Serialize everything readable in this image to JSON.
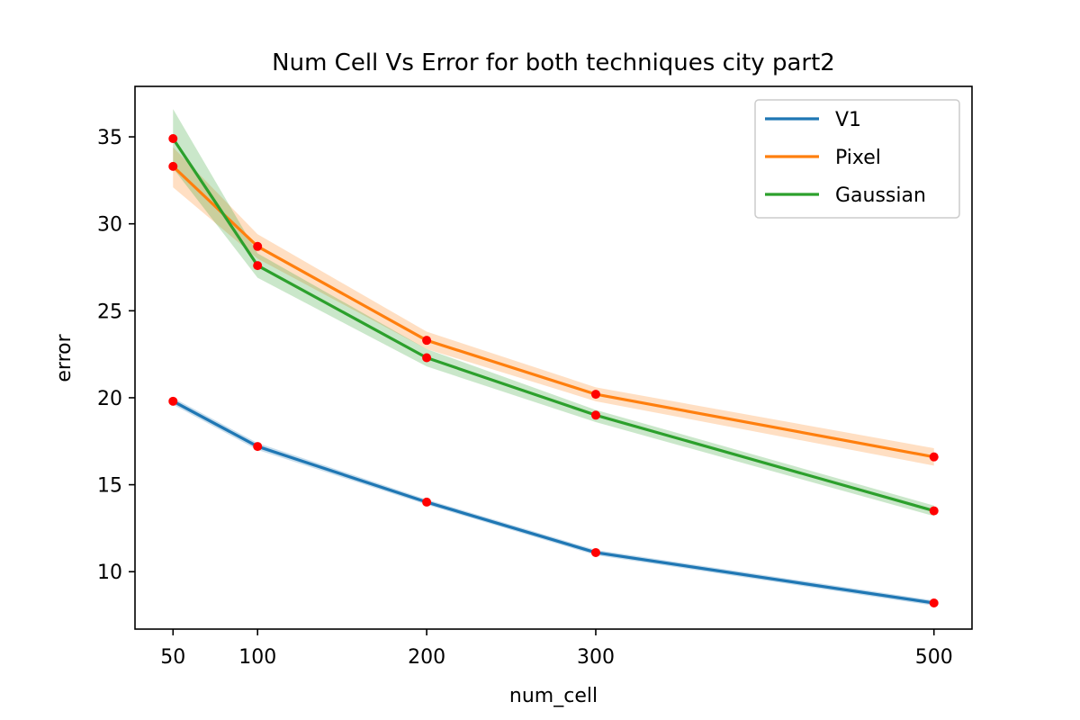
{
  "chart_data": {
    "type": "line",
    "title": "Num Cell Vs Error for both techniques city part2",
    "xlabel": "num_cell",
    "ylabel": "error",
    "x": [
      50,
      100,
      200,
      300,
      500
    ],
    "xlim": [
      27.5,
      522.5
    ],
    "ylim": [
      6.7,
      37.9
    ],
    "xticks": [
      50,
      100,
      200,
      300,
      500
    ],
    "yticks": [
      10,
      15,
      20,
      25,
      30,
      35
    ],
    "grid": false,
    "legend_position": "top-right",
    "marker_color": "#ff0000",
    "series": [
      {
        "name": "V1",
        "color": "#1f77b4",
        "values": [
          19.8,
          17.2,
          14.0,
          11.1,
          8.2
        ],
        "lower": [
          19.6,
          17.0,
          13.85,
          10.95,
          8.05
        ],
        "upper": [
          20.0,
          17.4,
          14.15,
          11.25,
          8.35
        ]
      },
      {
        "name": "Pixel",
        "color": "#ff7f0e",
        "values": [
          33.3,
          28.7,
          23.3,
          20.2,
          16.6
        ],
        "lower": [
          32.1,
          28.0,
          22.8,
          19.8,
          16.1
        ],
        "upper": [
          34.4,
          29.4,
          23.8,
          20.6,
          17.1
        ]
      },
      {
        "name": "Gaussian",
        "color": "#2ca02c",
        "values": [
          34.9,
          27.6,
          22.3,
          19.0,
          13.5
        ],
        "lower": [
          33.2,
          26.9,
          21.8,
          18.6,
          13.2
        ],
        "upper": [
          36.6,
          28.3,
          22.8,
          19.3,
          13.8
        ]
      }
    ]
  }
}
